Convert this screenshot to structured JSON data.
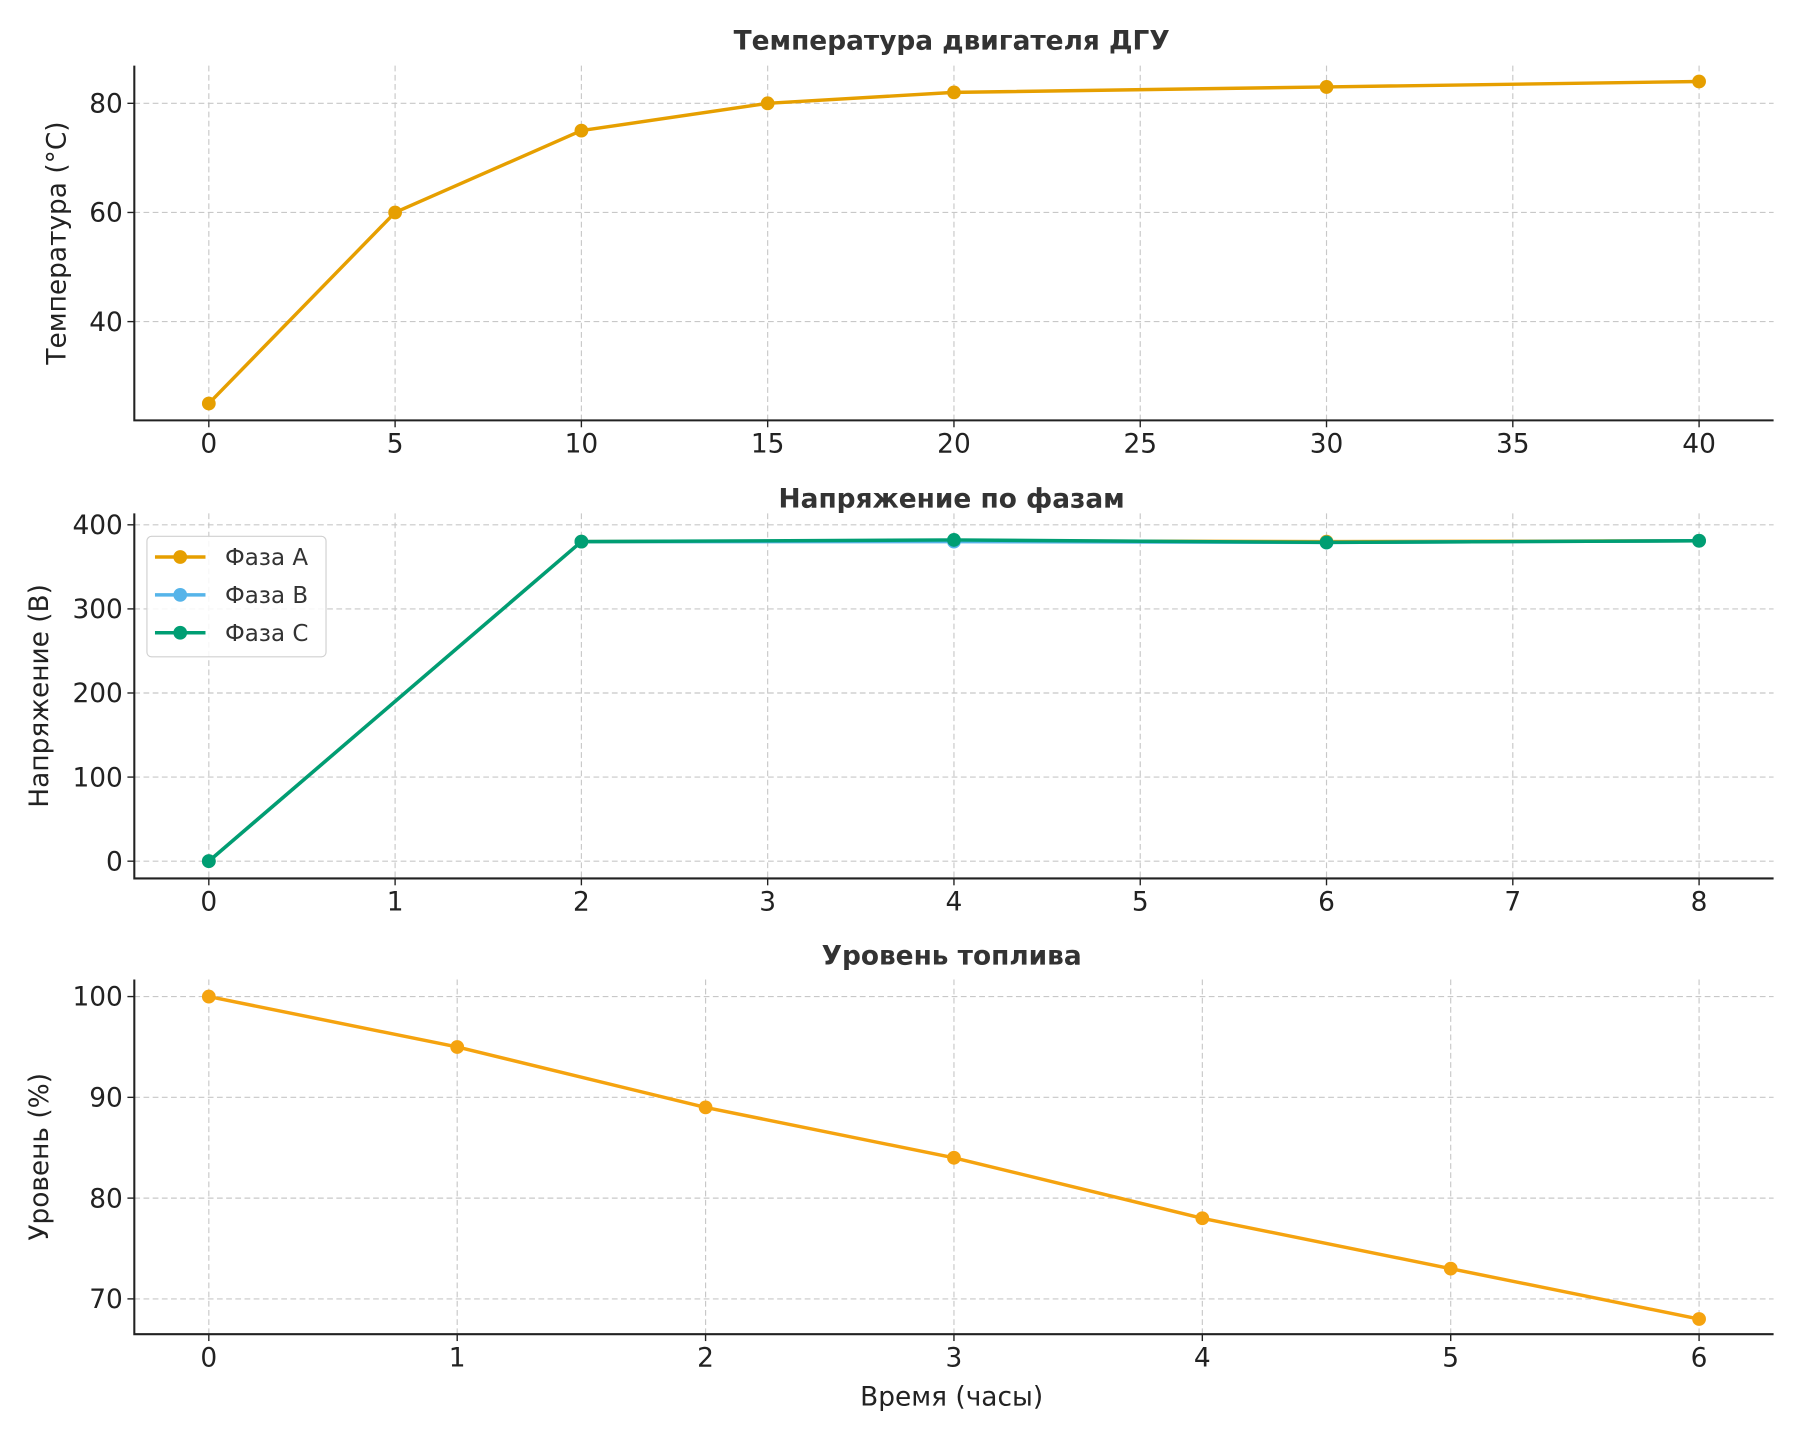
{
  "chart_data": [
    {
      "type": "line",
      "title": "Температура двигателя ДГУ",
      "xlabel": "",
      "ylabel": "Температура (°C)",
      "xlim": [
        -2,
        42
      ],
      "ylim": [
        21.9,
        86.9
      ],
      "xticks": [
        0,
        5,
        10,
        15,
        20,
        25,
        30,
        35,
        40
      ],
      "yticks": [
        40,
        60,
        80
      ],
      "grid": true,
      "x": [
        0,
        5,
        10,
        15,
        20,
        30,
        40
      ],
      "series": [
        {
          "name": "Температура",
          "color": "#E69F00",
          "values": [
            25,
            60,
            75,
            80,
            82,
            83,
            84
          ]
        }
      ]
    },
    {
      "type": "line",
      "title": "Напряжение по фазам",
      "xlabel": "",
      "ylabel": "Напряжение (В)",
      "xlim": [
        -0.4,
        8.4
      ],
      "ylim": [
        -20.5,
        413.6
      ],
      "xticks": [
        0,
        1,
        2,
        3,
        4,
        5,
        6,
        7,
        8
      ],
      "yticks": [
        0,
        100,
        200,
        300,
        400
      ],
      "grid": true,
      "legend": "top-left",
      "x": [
        0,
        2,
        4,
        6,
        8
      ],
      "series": [
        {
          "name": "Фаза A",
          "color": "#E69F00",
          "values": [
            0,
            380,
            381,
            380,
            381
          ]
        },
        {
          "name": "Фаза B",
          "color": "#56B4E9",
          "values": [
            0,
            380,
            380,
            379,
            381
          ]
        },
        {
          "name": "Фаза C",
          "color": "#009E73",
          "values": [
            0,
            380,
            382,
            379,
            381
          ]
        }
      ]
    },
    {
      "type": "line",
      "title": "Уровень топлива",
      "xlabel": "Время (часы)",
      "ylabel": "Уровень (%)",
      "xlim": [
        -0.3,
        6.3
      ],
      "ylim": [
        66.5,
        101.7
      ],
      "xticks": [
        0,
        1,
        2,
        3,
        4,
        5,
        6
      ],
      "yticks": [
        70,
        80,
        90,
        100
      ],
      "grid": true,
      "x": [
        0,
        1,
        2,
        3,
        4,
        5,
        6
      ],
      "series": [
        {
          "name": "Уровень",
          "color": "#F5A30F",
          "values": [
            100,
            95,
            89,
            84,
            78,
            73,
            68
          ]
        }
      ]
    }
  ]
}
